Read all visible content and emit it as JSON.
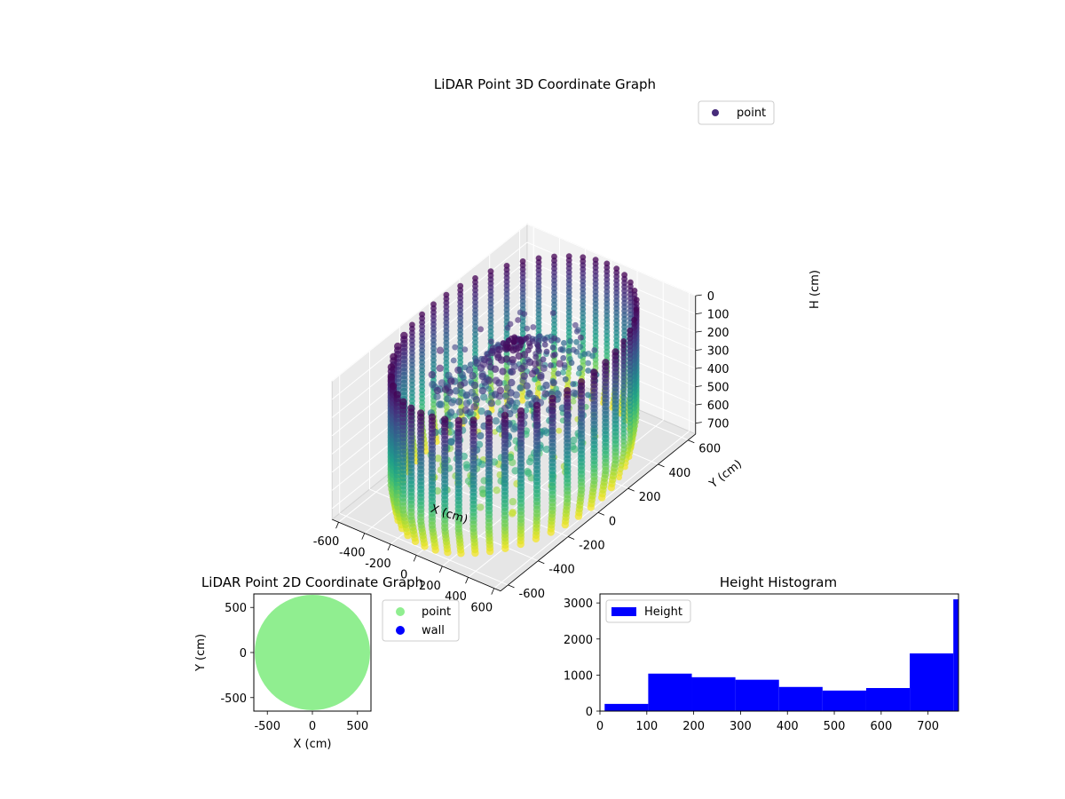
{
  "chart_data": [
    {
      "type": "scatter",
      "subtype": "3d",
      "title": "LiDAR Point 3D Coordinate Graph",
      "xlabel": "X (cm)",
      "ylabel": "Y (cm)",
      "zlabel": "H (cm)",
      "xlim": [
        -650,
        650
      ],
      "ylim": [
        -650,
        650
      ],
      "zlim": [
        750,
        0
      ],
      "z_inverted": true,
      "xticks": [
        -600,
        -400,
        -200,
        0,
        200,
        400,
        600
      ],
      "yticks": [
        -600,
        -400,
        -200,
        0,
        200,
        400,
        600
      ],
      "zticks": [
        0,
        100,
        200,
        300,
        400,
        500,
        600,
        700
      ],
      "legend": [
        {
          "label": "point",
          "color": "#472c7a"
        }
      ],
      "legend_position": "top-right",
      "colormap": "viridis",
      "grid": true,
      "description_shape": {
        "wall_radius": 620,
        "wall_height_range": [
          0,
          760
        ],
        "vertical_columns": 48,
        "center_point": [
          0,
          0,
          20
        ]
      }
    },
    {
      "type": "scatter",
      "title": "LiDAR Point 2D Coordinate Graph",
      "xlabel": "X (cm)",
      "ylabel": "Y (cm)",
      "xlim": [
        -650,
        650
      ],
      "ylim": [
        -650,
        650
      ],
      "xticks": [
        -500,
        0,
        500
      ],
      "yticks": [
        -500,
        0,
        500
      ],
      "series": [
        {
          "name": "point",
          "color": "#90ee90",
          "region": "disk",
          "radius": 640
        },
        {
          "name": "wall",
          "color": "#0000ff",
          "points": []
        }
      ],
      "legend_position": "outside-right"
    },
    {
      "type": "bar",
      "subtype": "histogram",
      "title": "Height Histogram",
      "xlim": [
        0,
        765
      ],
      "ylim": [
        0,
        3250
      ],
      "xticks": [
        0,
        100,
        200,
        300,
        400,
        500,
        600,
        700
      ],
      "yticks": [
        0,
        1000,
        2000,
        3000
      ],
      "bin_edges": [
        10,
        103,
        196,
        289,
        382,
        475,
        568,
        661,
        754,
        765
      ],
      "values": [
        200,
        1040,
        940,
        870,
        670,
        570,
        640,
        1600,
        3100
      ],
      "series": [
        {
          "name": "Height",
          "color": "#0000ff"
        }
      ],
      "legend_position": "top-left"
    }
  ]
}
